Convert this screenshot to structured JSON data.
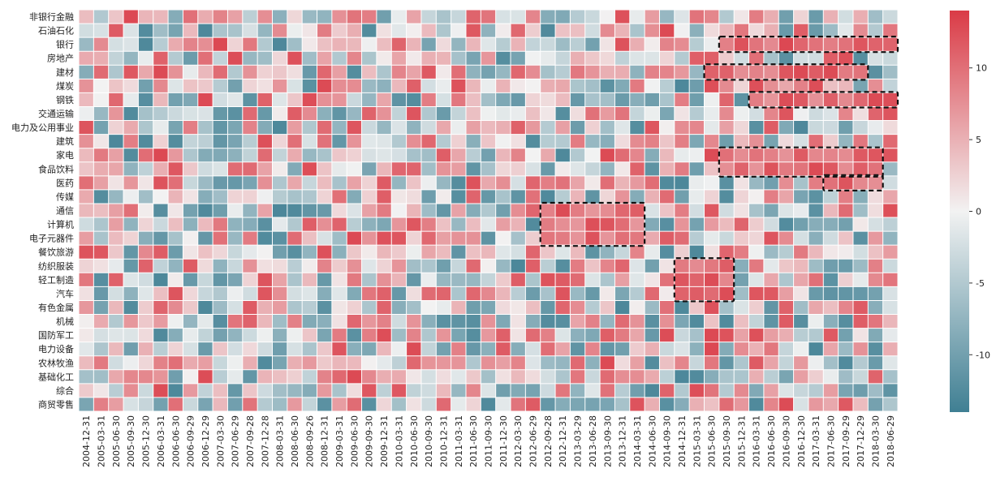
{
  "chart_data": {
    "type": "heatmap",
    "title": "",
    "xlabel": "",
    "ylabel": "",
    "rows": [
      "非银行金融",
      "石油石化",
      "银行",
      "房地产",
      "建材",
      "煤炭",
      "钢铁",
      "交通运输",
      "电力及公用事业",
      "建筑",
      "家电",
      "食品饮料",
      "医药",
      "传媒",
      "通信",
      "计算机",
      "电子元器件",
      "餐饮旅游",
      "纺织服装",
      "轻工制造",
      "汽车",
      "有色金属",
      "机械",
      "国防军工",
      "电力设备",
      "农林牧渔",
      "基础化工",
      "综合",
      "商贸零售"
    ],
    "columns": [
      "2004-12-31",
      "2005-03-31",
      "2005-06-30",
      "2005-09-30",
      "2005-12-30",
      "2006-03-31",
      "2006-06-30",
      "2006-09-29",
      "2006-12-29",
      "2007-03-30",
      "2007-06-29",
      "2007-09-28",
      "2007-12-28",
      "2008-03-31",
      "2008-06-30",
      "2008-09-26",
      "2008-12-31",
      "2009-03-31",
      "2009-06-30",
      "2009-09-30",
      "2009-12-31",
      "2010-03-31",
      "2010-06-30",
      "2010-09-30",
      "2010-12-31",
      "2011-03-31",
      "2011-06-30",
      "2011-09-30",
      "2011-12-30",
      "2012-03-30",
      "2012-06-29",
      "2012-09-28",
      "2012-12-31",
      "2013-03-29",
      "2013-06-28",
      "2013-09-30",
      "2013-12-31",
      "2014-03-31",
      "2014-06-30",
      "2014-09-30",
      "2014-12-31",
      "2015-03-31",
      "2015-06-30",
      "2015-09-30",
      "2015-12-31",
      "2016-03-31",
      "2016-06-30",
      "2016-09-30",
      "2016-12-30",
      "2017-03-31",
      "2017-06-30",
      "2017-09-29",
      "2017-12-29",
      "2018-03-30",
      "2018-06-29"
    ],
    "x_tick_labels": [
      "2004-12-31",
      "2005-03-31",
      "2005-06-30",
      "2005-09-30",
      "2005-12-30",
      "2006-03-31",
      "2006-06-30",
      "2006-09-29",
      "2006-12-29",
      "2007-03-30",
      "2007-06-29",
      "2007-09-28",
      "2007-12-28",
      "2008-03-31",
      "2008-06-30",
      "2008-09-26",
      "2008-12-31",
      "2009-03-31",
      "2009-06-30",
      "2009-09-30",
      "2009-12-31",
      "2010-03-31",
      "2010-06-30",
      "2010-09-30",
      "2010-12-31",
      "2011-03-31",
      "2011-06-30",
      "2011-09-30",
      "2011-12-30",
      "2012-03-30",
      "2012-06-29",
      "2012-09-28",
      "2012-12-31",
      "2013-03-29",
      "2013-06-28",
      "2013-09-30",
      "2013-12-31",
      "2014-03-31",
      "2014-06-30",
      "2014-09-30",
      "2014-12-31",
      "2015-03-31",
      "2015-06-30",
      "2015-09-30",
      "2015-12-31",
      "2016-03-31",
      "2016-06-30",
      "2016-09-30",
      "2016-12-30",
      "2017-03-31",
      "2017-06-30",
      "2017-09-29",
      "2017-12-29",
      "2018-03-30",
      "2018-06-29"
    ],
    "value_range": [
      -14,
      14
    ],
    "colorbar": {
      "ticks": [
        10,
        5,
        0,
        -5,
        -10
      ]
    },
    "colors": {
      "low": "#3f7f93",
      "mid": "#f2f2f2",
      "high": "#da3b46"
    },
    "highlight_boxes": [
      {
        "rows": [
          "银行"
        ],
        "from": "2015-09-30",
        "to": "2018-06-29"
      },
      {
        "rows": [
          "建材"
        ],
        "from": "2015-06-30",
        "to": "2017-12-29"
      },
      {
        "rows": [
          "钢铁"
        ],
        "from": "2016-03-31",
        "to": "2018-06-29"
      },
      {
        "rows": [
          "家电",
          "食品饮料"
        ],
        "from": "2015-09-30",
        "to": "2018-03-30"
      },
      {
        "rows": [
          "医药"
        ],
        "from": "2017-06-30",
        "to": "2018-03-30"
      },
      {
        "rows": [
          "通信",
          "计算机",
          "电子元器件"
        ],
        "from": "2012-09-28",
        "to": "2014-03-31"
      },
      {
        "rows": [
          "纺织服装",
          "轻工制造",
          "汽车"
        ],
        "from": "2014-12-31",
        "to": "2015-09-30"
      }
    ]
  }
}
